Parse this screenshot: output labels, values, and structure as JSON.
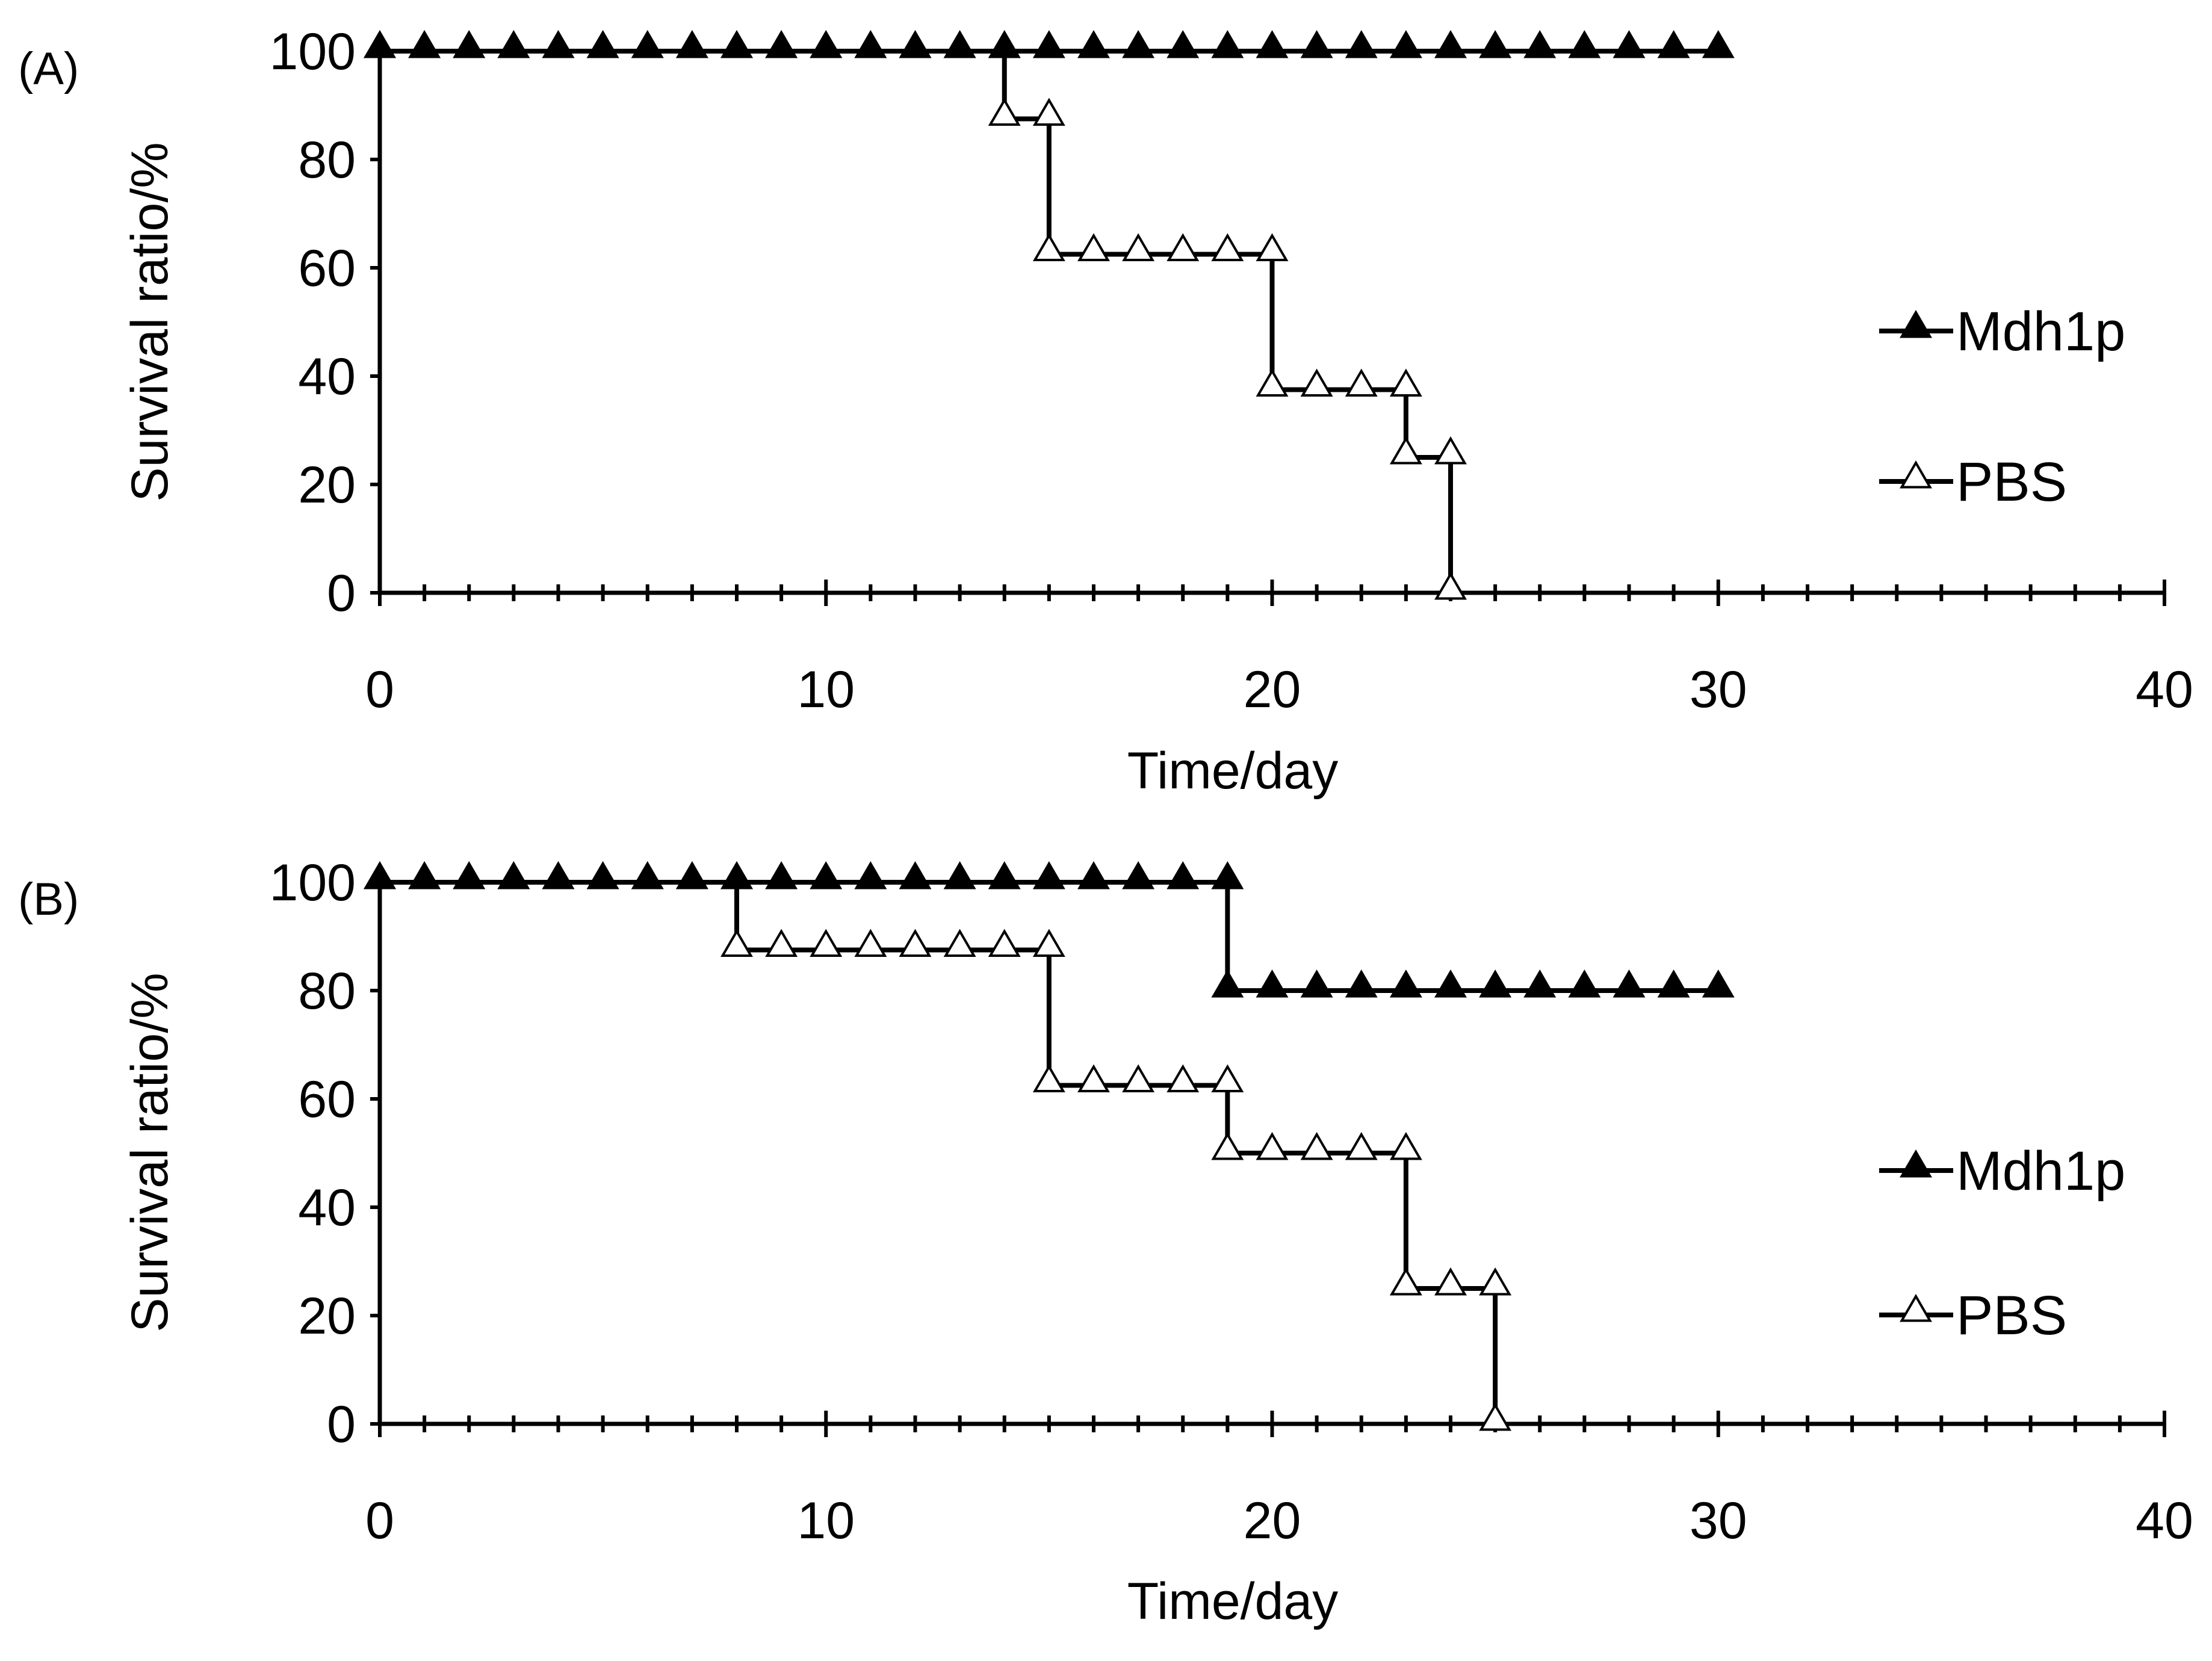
{
  "chart_data": [
    {
      "type": "line",
      "panel_label": "(A)",
      "xlabel": "Time/day",
      "ylabel": "Survival ratio/%",
      "xlim": [
        0,
        40
      ],
      "ylim": [
        0,
        100
      ],
      "xticks": [
        0,
        10,
        20,
        30,
        40
      ],
      "yticks": [
        0,
        20,
        40,
        60,
        80,
        100
      ],
      "grid": false,
      "legend_position": "right",
      "step": true,
      "series": [
        {
          "name": "Mdh1p",
          "marker": "filled-triangle",
          "x": [
            0,
            1,
            2,
            3,
            4,
            5,
            6,
            7,
            8,
            9,
            10,
            11,
            12,
            13,
            14,
            15,
            16,
            17,
            18,
            19,
            20,
            21,
            22,
            23,
            24,
            25,
            26,
            27,
            28,
            29,
            30
          ],
          "y": [
            100,
            100,
            100,
            100,
            100,
            100,
            100,
            100,
            100,
            100,
            100,
            100,
            100,
            100,
            100,
            100,
            100,
            100,
            100,
            100,
            100,
            100,
            100,
            100,
            100,
            100,
            100,
            100,
            100,
            100,
            100
          ]
        },
        {
          "name": "PBS",
          "marker": "open-triangle",
          "x": [
            0,
            1,
            2,
            3,
            4,
            5,
            6,
            7,
            8,
            9,
            10,
            11,
            12,
            13,
            14,
            14,
            15,
            15,
            16,
            17,
            18,
            19,
            20,
            20,
            21,
            22,
            23,
            23,
            24,
            24
          ],
          "y": [
            100,
            100,
            100,
            100,
            100,
            100,
            100,
            100,
            100,
            100,
            100,
            100,
            100,
            100,
            100,
            87.5,
            87.5,
            62.5,
            62.5,
            62.5,
            62.5,
            62.5,
            62.5,
            37.5,
            37.5,
            37.5,
            37.5,
            25,
            25,
            0
          ]
        }
      ]
    },
    {
      "type": "line",
      "panel_label": "(B)",
      "xlabel": "Time/day",
      "ylabel": "Survival ratio/%",
      "xlim": [
        0,
        40
      ],
      "ylim": [
        0,
        100
      ],
      "xticks": [
        0,
        10,
        20,
        30,
        40
      ],
      "yticks": [
        0,
        20,
        40,
        60,
        80,
        100
      ],
      "grid": false,
      "legend_position": "right",
      "step": true,
      "series": [
        {
          "name": "Mdh1p",
          "marker": "filled-triangle",
          "x": [
            0,
            1,
            2,
            3,
            4,
            5,
            6,
            7,
            8,
            9,
            10,
            11,
            12,
            13,
            14,
            15,
            16,
            17,
            18,
            19,
            19,
            20,
            21,
            22,
            23,
            24,
            25,
            26,
            27,
            28,
            29,
            30
          ],
          "y": [
            100,
            100,
            100,
            100,
            100,
            100,
            100,
            100,
            100,
            100,
            100,
            100,
            100,
            100,
            100,
            100,
            100,
            100,
            100,
            100,
            80,
            80,
            80,
            80,
            80,
            80,
            80,
            80,
            80,
            80,
            80,
            80
          ]
        },
        {
          "name": "PBS",
          "marker": "open-triangle",
          "x": [
            0,
            1,
            2,
            3,
            4,
            5,
            6,
            7,
            8,
            8,
            9,
            10,
            11,
            12,
            13,
            14,
            15,
            15,
            16,
            17,
            18,
            19,
            19,
            20,
            21,
            22,
            23,
            23,
            24,
            25,
            25
          ],
          "y": [
            100,
            100,
            100,
            100,
            100,
            100,
            100,
            100,
            100,
            87.5,
            87.5,
            87.5,
            87.5,
            87.5,
            87.5,
            87.5,
            87.5,
            62.5,
            62.5,
            62.5,
            62.5,
            62.5,
            50,
            50,
            50,
            50,
            50,
            25,
            25,
            25,
            0
          ]
        }
      ]
    }
  ]
}
